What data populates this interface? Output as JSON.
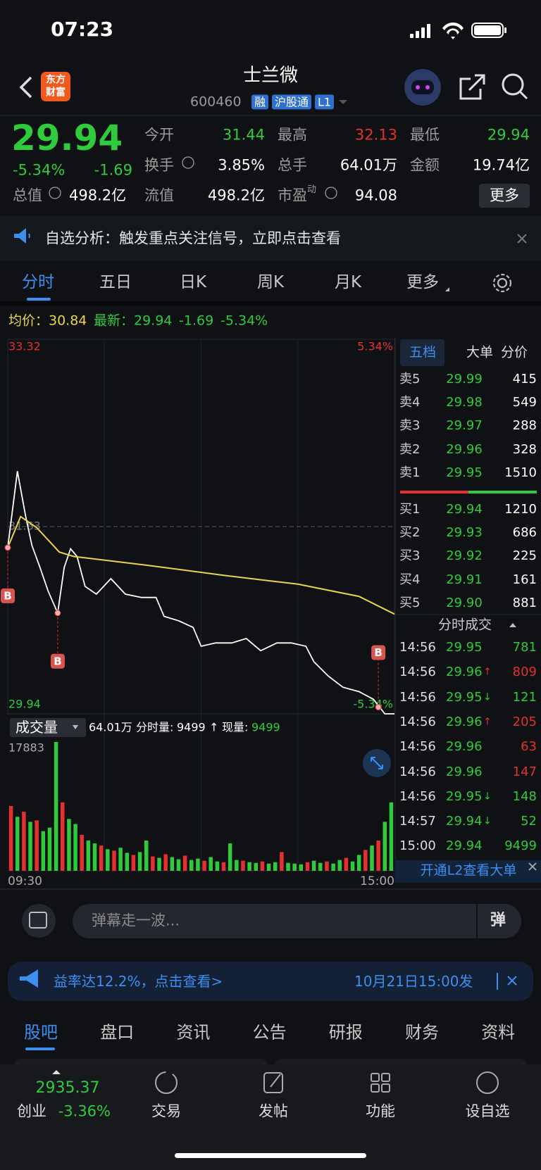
{
  "status_bar": {
    "time": "07:23"
  },
  "header": {
    "logo": [
      "东方",
      "财富"
    ],
    "title": "士兰微",
    "code": "600460",
    "tags": [
      "融",
      "沪股通",
      "L1"
    ]
  },
  "quote": {
    "price": "29.94",
    "change_pct": "-5.34%",
    "change": "-1.69",
    "total_value": {
      "label": "总值",
      "value": "498.2亿"
    },
    "grid": [
      [
        {
          "label": "今开",
          "value": "31.44",
          "color": "#2fcb3c"
        },
        {
          "label": "最高",
          "value": "32.13",
          "color": "#e5302f"
        },
        {
          "label": "最低",
          "value": "29.94",
          "color": "#2fcb3c"
        }
      ],
      [
        {
          "label": "换手",
          "value": "3.85%"
        },
        {
          "label": "总手",
          "value": "64.01万"
        },
        {
          "label": "金额",
          "value": "19.74亿"
        }
      ],
      [
        {
          "label": "流值",
          "value": "498.2亿"
        },
        {
          "label": "市盈",
          "sup": "动",
          "value": "94.08"
        }
      ]
    ],
    "more": "更多"
  },
  "notice": "自选分析：触发重点关注信号，立即点击查看",
  "tabs": [
    "分时",
    "五日",
    "日K",
    "周K",
    "月K",
    "更多"
  ],
  "summary": {
    "avg_label": "均价：",
    "avg": "30.84",
    "last_label": "最新：",
    "last": "29.94",
    "change": "-1.69",
    "change_pct": "-5.34%"
  },
  "chart_data": [
    {
      "type": "line",
      "grid": true,
      "xlim": [
        0,
        240
      ],
      "xticks": [
        {
          "value": 0,
          "label": "09:30"
        },
        {
          "value": 240,
          "label": "15:00"
        }
      ],
      "ylim": [
        29.94,
        33.32
      ],
      "yticks": [
        33.32,
        31.63,
        29.94
      ],
      "y2lim": [
        -5.34,
        5.34
      ],
      "y2ticks": [
        {
          "value": 5.34,
          "label": "5.34%"
        },
        {
          "value": -5.34,
          "label": "-5.34%"
        }
      ],
      "series": [
        {
          "color": "#ffffff",
          "x": [
            0,
            6,
            11,
            15,
            20,
            25,
            31,
            35,
            39,
            43,
            48,
            55,
            64,
            73,
            83,
            92,
            97,
            106,
            115,
            120,
            129,
            139,
            148,
            157,
            167,
            176,
            185,
            190,
            199,
            208,
            218,
            227,
            234,
            240
          ],
          "values": [
            31.44,
            32.13,
            31.73,
            31.46,
            31.26,
            31.05,
            30.85,
            31.26,
            31.43,
            31.36,
            31.09,
            31.02,
            31.16,
            31.02,
            30.99,
            30.99,
            30.82,
            30.78,
            30.72,
            30.55,
            30.58,
            30.58,
            30.62,
            30.51,
            30.58,
            30.58,
            30.55,
            30.41,
            30.28,
            30.18,
            30.14,
            30.07,
            29.94,
            29.94
          ]
        },
        {
          "color": "#e8d44d",
          "x": [
            0,
            8,
            18,
            32,
            41,
            87,
            134,
            180,
            218,
            240
          ],
          "values": [
            31.44,
            31.72,
            31.62,
            31.4,
            31.36,
            31.28,
            31.19,
            31.11,
            31.0,
            30.84
          ]
        }
      ],
      "annotations": [
        {
          "label": "B",
          "x": 0,
          "y": 31.44
        },
        {
          "label": "B",
          "x": 31,
          "y": 30.85
        },
        {
          "label": "B",
          "x": 230,
          "y": 30.0
        }
      ]
    },
    {
      "type": "bar",
      "ylim": [
        0,
        17883
      ],
      "yticks": [
        17883
      ],
      "values": [
        9000,
        7500,
        8200,
        6800,
        7000,
        5500,
        6000,
        17883,
        9500,
        7200,
        6500,
        5000,
        4200,
        3800,
        3500,
        3000,
        2800,
        3200,
        2500,
        2200,
        2600,
        4200,
        2000,
        1800,
        2300,
        1900,
        1600,
        2100,
        1500,
        1700,
        1400,
        1900,
        1300,
        1200,
        3800,
        1500,
        1400,
        1200,
        1100,
        1300,
        1000,
        1200,
        2600,
        1100,
        1000,
        900,
        1200,
        1400,
        1100,
        1300,
        1000,
        1500,
        1800,
        1300,
        2200,
        2900,
        3500,
        4200,
        6800,
        9499
      ],
      "colors": [
        "#e5302f",
        "#2fcb3c",
        "#e5302f",
        "#2fcb3c",
        "#e5302f",
        "#2fcb3c",
        "#2fcb3c",
        "#2fcb3c",
        "#e5302f",
        "#2fcb3c",
        "#2fcb3c",
        "#e5302f",
        "#2fcb3c",
        "#2fcb3c",
        "#e5302f",
        "#2fcb3c",
        "#e5302f",
        "#2fcb3c",
        "#2fcb3c",
        "#e5302f",
        "#2fcb3c",
        "#2fcb3c",
        "#e5302f",
        "#2fcb3c",
        "#e5302f",
        "#2fcb3c",
        "#2fcb3c",
        "#e5302f",
        "#2fcb3c",
        "#2fcb3c",
        "#e5302f",
        "#2fcb3c",
        "#2fcb3c",
        "#e5302f",
        "#2fcb3c",
        "#2fcb3c",
        "#e5302f",
        "#2fcb3c",
        "#2fcb3c",
        "#e5302f",
        "#2fcb3c",
        "#2fcb3c",
        "#e5302f",
        "#2fcb3c",
        "#2fcb3c",
        "#2fcb3c",
        "#e5302f",
        "#2fcb3c",
        "#2fcb3c",
        "#e5302f",
        "#2fcb3c",
        "#2fcb3c",
        "#e5302f",
        "#2fcb3c",
        "#2fcb3c",
        "#e5302f",
        "#2fcb3c",
        "#e5302f",
        "#2fcb3c",
        "#2fcb3c"
      ]
    }
  ],
  "volume_header": {
    "label": "成交量",
    "total": "64.01万",
    "minute_label": "分时量:",
    "minute_value": "9499",
    "arrow": "↑",
    "now_label": "现量:",
    "now_value": "9499"
  },
  "order_book": {
    "tabs": [
      "五档",
      "大单",
      "分价"
    ],
    "asks": [
      {
        "label": "卖5",
        "price": "29.99",
        "volume": "415"
      },
      {
        "label": "卖4",
        "price": "29.98",
        "volume": "549"
      },
      {
        "label": "卖3",
        "price": "29.97",
        "volume": "288"
      },
      {
        "label": "卖2",
        "price": "29.96",
        "volume": "328"
      },
      {
        "label": "卖1",
        "price": "29.95",
        "volume": "1510"
      }
    ],
    "bids": [
      {
        "label": "买1",
        "price": "29.94",
        "volume": "1210"
      },
      {
        "label": "买2",
        "price": "29.93",
        "volume": "686"
      },
      {
        "label": "买3",
        "price": "29.92",
        "volume": "225"
      },
      {
        "label": "买4",
        "price": "29.91",
        "volume": "161"
      },
      {
        "label": "买5",
        "price": "29.90",
        "volume": "881"
      }
    ]
  },
  "trades": {
    "title": "分时成交",
    "rows": [
      {
        "time": "14:56",
        "price": "29.95",
        "volume": "781",
        "color": "#2fcb3c"
      },
      {
        "time": "14:56",
        "price": "29.96",
        "arrow": "↑",
        "volume": "809",
        "color": "#e5302f"
      },
      {
        "time": "14:56",
        "price": "29.95",
        "arrow": "↓",
        "volume": "121",
        "color": "#2fcb3c"
      },
      {
        "time": "14:56",
        "price": "29.96",
        "arrow": "↑",
        "volume": "205",
        "color": "#e5302f"
      },
      {
        "time": "14:56",
        "price": "29.96",
        "volume": "63",
        "color": "#e5302f"
      },
      {
        "time": "14:56",
        "price": "29.96",
        "volume": "147",
        "color": "#e5302f"
      },
      {
        "time": "14:56",
        "price": "29.95",
        "arrow": "↓",
        "volume": "148",
        "color": "#2fcb3c"
      },
      {
        "time": "14:57",
        "price": "29.94",
        "arrow": "↓",
        "volume": "52",
        "color": "#2fcb3c"
      },
      {
        "time": "15:00",
        "price": "29.94",
        "volume": "9499",
        "color": "#2fcb3c"
      }
    ]
  },
  "l2_banner": "开通L2查看大单",
  "comment": {
    "placeholder": "弹幕走一波...",
    "button": "弹"
  },
  "ticker": [
    "益率达12.2%，点击查看>",
    "10月21日15:00发"
  ],
  "section_tabs": [
    "股吧",
    "盘口",
    "资讯",
    "公告",
    "研报",
    "财务",
    "资料"
  ],
  "bottom_nav": {
    "index_value": "2935.37",
    "index_name": "创业",
    "index_change": "-3.36%",
    "items": [
      "交易",
      "发帖",
      "功能",
      "设自选"
    ]
  }
}
